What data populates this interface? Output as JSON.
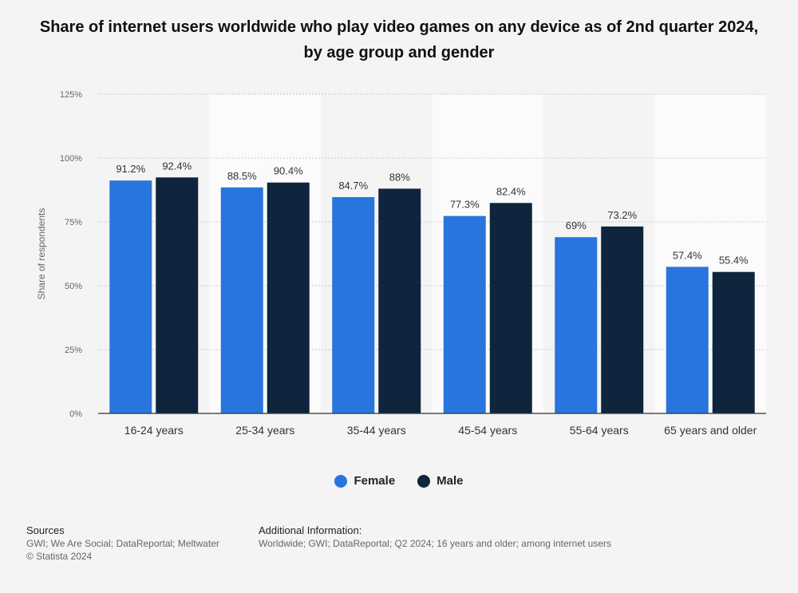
{
  "chart_data": {
    "type": "bar",
    "title": "Share of internet users worldwide who play video games on any device as of 2nd quarter 2024, by age group and gender",
    "ylabel": "Share of respondents",
    "xlabel": "",
    "ylim": [
      0,
      125
    ],
    "yticks": [
      0,
      25,
      50,
      75,
      100,
      125
    ],
    "ytick_labels": [
      "0%",
      "25%",
      "50%",
      "75%",
      "100%",
      "125%"
    ],
    "categories": [
      "16-24 years",
      "25-34 years",
      "35-44 years",
      "45-54 years",
      "55-64 years",
      "65 years and older"
    ],
    "series": [
      {
        "name": "Female",
        "color": "#2876dd",
        "values": [
          91.2,
          88.5,
          84.7,
          77.3,
          69,
          57.4
        ],
        "labels": [
          "91.2%",
          "88.5%",
          "84.7%",
          "77.3%",
          "69%",
          "57.4%"
        ]
      },
      {
        "name": "Male",
        "color": "#0f253d",
        "values": [
          92.4,
          90.4,
          88,
          82.4,
          73.2,
          55.4
        ],
        "labels": [
          "92.4%",
          "90.4%",
          "88%",
          "82.4%",
          "73.2%",
          "55.4%"
        ]
      }
    ],
    "grid": true,
    "legend_position": "bottom-center"
  },
  "footer": {
    "sources_heading": "Sources",
    "sources_text": "GWI; We Are Social; DataReportal; Meltwater",
    "copyright": "© Statista 2024",
    "info_heading": "Additional Information:",
    "info_text": "Worldwide; GWI; DataReportal; Q2 2024; 16 years and older; among internet users"
  }
}
